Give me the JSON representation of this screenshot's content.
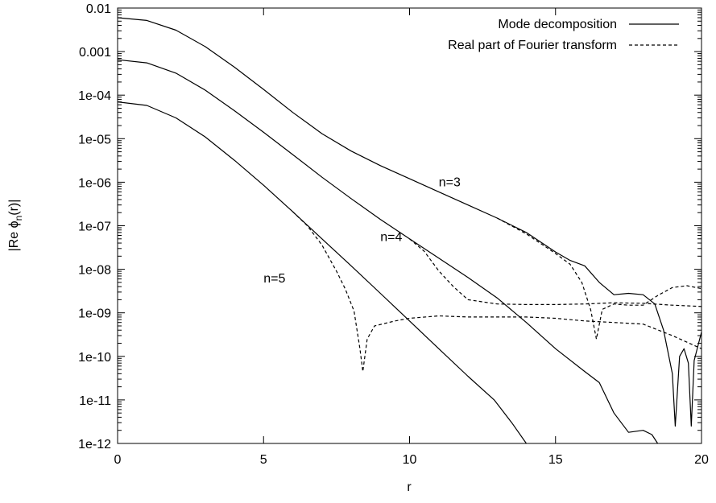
{
  "chart_data": {
    "type": "line",
    "title": "",
    "xlabel": "r",
    "ylabel_parts": {
      "pre": "|Re ",
      "phi": "ϕ",
      "sub": "n",
      "post": "(r)|"
    },
    "xlim": [
      0,
      20
    ],
    "ylim": [
      1e-12,
      0.01
    ],
    "y_scale": "log",
    "grid": false,
    "legend_position": "top-right",
    "x_ticks": [
      0,
      5,
      10,
      15,
      20
    ],
    "x_tick_labels": [
      "0",
      "5",
      "10",
      "15",
      "20"
    ],
    "y_ticks": [
      0.01,
      0.001,
      0.0001,
      1e-05,
      1e-06,
      1e-07,
      1e-08,
      1e-09,
      1e-10,
      1e-11,
      1e-12
    ],
    "y_tick_labels": [
      "0.01",
      "0.001",
      "1e-04",
      "1e-05",
      "1e-06",
      "1e-07",
      "1e-08",
      "1e-09",
      "1e-10",
      "1e-11",
      "1e-12"
    ],
    "legend": [
      {
        "label": "Mode decomposition",
        "style": "solid"
      },
      {
        "label": "Real part of Fourier transform",
        "style": "dashed"
      }
    ],
    "annotations": [
      {
        "text": "n=3",
        "x": 11,
        "y": 8e-07
      },
      {
        "text": "n=4",
        "x": 9,
        "y": 4.5e-08
      },
      {
        "text": "n=5",
        "x": 5,
        "y": 5e-09
      }
    ],
    "series": [
      {
        "style": "solid",
        "points": [
          [
            0,
            0.006
          ],
          [
            1,
            0.0052
          ],
          [
            2,
            0.0031
          ],
          [
            3,
            0.0013
          ],
          [
            4,
            0.00044
          ],
          [
            5,
            0.000135
          ],
          [
            6,
            4e-05
          ],
          [
            7,
            1.3e-05
          ],
          [
            8,
            5.2e-06
          ],
          [
            9,
            2.4e-06
          ],
          [
            10,
            1.2e-06
          ],
          [
            11,
            6e-07
          ],
          [
            12,
            3e-07
          ],
          [
            13,
            1.5e-07
          ],
          [
            14,
            7e-08
          ],
          [
            15,
            2.5e-08
          ],
          [
            15.5,
            1.6e-08
          ],
          [
            16,
            1.2e-08
          ],
          [
            16.5,
            5e-09
          ],
          [
            17,
            2.6e-09
          ],
          [
            17.5,
            2.8e-09
          ],
          [
            18,
            2.6e-09
          ],
          [
            18.4,
            1.6e-09
          ],
          [
            18.7,
            4e-10
          ],
          [
            19,
            4e-11
          ],
          [
            19.1,
            2.5e-12
          ],
          [
            19.25,
            1e-10
          ],
          [
            19.4,
            1.5e-10
          ],
          [
            19.55,
            7e-11
          ],
          [
            19.65,
            2.5e-12
          ],
          [
            19.75,
            8e-11
          ],
          [
            19.9,
            2e-10
          ],
          [
            20,
            3.6e-10
          ]
        ]
      },
      {
        "style": "solid",
        "points": [
          [
            0,
            0.00065
          ],
          [
            1,
            0.00055
          ],
          [
            2,
            0.00032
          ],
          [
            3,
            0.00013
          ],
          [
            4,
            4.4e-05
          ],
          [
            5,
            1.4e-05
          ],
          [
            6,
            4.3e-06
          ],
          [
            7,
            1.3e-06
          ],
          [
            8,
            4.2e-07
          ],
          [
            9,
            1.4e-07
          ],
          [
            10,
            5e-08
          ],
          [
            11,
            1.8e-08
          ],
          [
            12,
            6.5e-09
          ],
          [
            13,
            2.2e-09
          ],
          [
            14,
            6e-10
          ],
          [
            15,
            1.5e-10
          ],
          [
            16,
            4.5e-11
          ],
          [
            16.5,
            2.5e-11
          ],
          [
            17,
            5e-12
          ],
          [
            17.5,
            1.8e-12
          ],
          [
            18,
            2e-12
          ],
          [
            18.3,
            1.6e-12
          ],
          [
            18.5,
            1e-12
          ]
        ]
      },
      {
        "style": "solid",
        "points": [
          [
            0,
            7e-05
          ],
          [
            1,
            5.8e-05
          ],
          [
            2,
            3e-05
          ],
          [
            3,
            1.1e-05
          ],
          [
            4,
            3.2e-06
          ],
          [
            5,
            8.5e-07
          ],
          [
            6,
            2.1e-07
          ],
          [
            7,
            5e-08
          ],
          [
            8,
            1.2e-08
          ],
          [
            9,
            2.8e-09
          ],
          [
            10,
            6.5e-10
          ],
          [
            11,
            1.5e-10
          ],
          [
            12,
            3.5e-11
          ],
          [
            12.9,
            1e-11
          ],
          [
            13.5,
            3e-12
          ],
          [
            14,
            1e-12
          ]
        ]
      },
      {
        "style": "dashed",
        "points": [
          [
            13,
            1.5e-07
          ],
          [
            14,
            6.5e-08
          ],
          [
            15,
            2.3e-08
          ],
          [
            15.5,
            1.3e-08
          ],
          [
            15.9,
            5e-09
          ],
          [
            16.2,
            1.2e-09
          ],
          [
            16.4,
            2.5e-10
          ],
          [
            16.6,
            1.2e-09
          ],
          [
            17,
            1.6e-09
          ],
          [
            17.5,
            1.5e-09
          ],
          [
            18,
            1.5e-09
          ],
          [
            18.5,
            2.5e-09
          ],
          [
            19,
            3.8e-09
          ],
          [
            19.5,
            4.2e-09
          ],
          [
            20,
            3.6e-09
          ]
        ]
      },
      {
        "style": "dashed",
        "points": [
          [
            10,
            5e-08
          ],
          [
            10.5,
            2.6e-08
          ],
          [
            11,
            9.2e-09
          ],
          [
            11.5,
            4e-09
          ],
          [
            12,
            2e-09
          ],
          [
            13,
            1.6e-09
          ],
          [
            14,
            1.55e-09
          ],
          [
            15,
            1.55e-09
          ],
          [
            16,
            1.6e-09
          ],
          [
            17,
            1.7e-09
          ],
          [
            18,
            1.65e-09
          ],
          [
            19,
            1.5e-09
          ],
          [
            20,
            1.4e-09
          ]
        ]
      },
      {
        "style": "dashed",
        "points": [
          [
            6,
            2.1e-07
          ],
          [
            6.5,
            1e-07
          ],
          [
            7,
            3.6e-08
          ],
          [
            7.5,
            9e-09
          ],
          [
            7.8,
            3.5e-09
          ],
          [
            8.1,
            1.1e-09
          ],
          [
            8.3,
            1.5e-10
          ],
          [
            8.4,
            4.5e-11
          ],
          [
            8.55,
            2.5e-10
          ],
          [
            8.8,
            5e-10
          ],
          [
            9.5,
            6.5e-10
          ],
          [
            10,
            7.5e-10
          ],
          [
            11,
            8.5e-10
          ],
          [
            12,
            8e-10
          ],
          [
            14,
            8e-10
          ],
          [
            15,
            7.5e-10
          ],
          [
            16,
            6.5e-10
          ],
          [
            17,
            6e-10
          ],
          [
            18,
            5.5e-10
          ],
          [
            19,
            3e-10
          ],
          [
            20,
            1.5e-10
          ]
        ]
      }
    ]
  }
}
